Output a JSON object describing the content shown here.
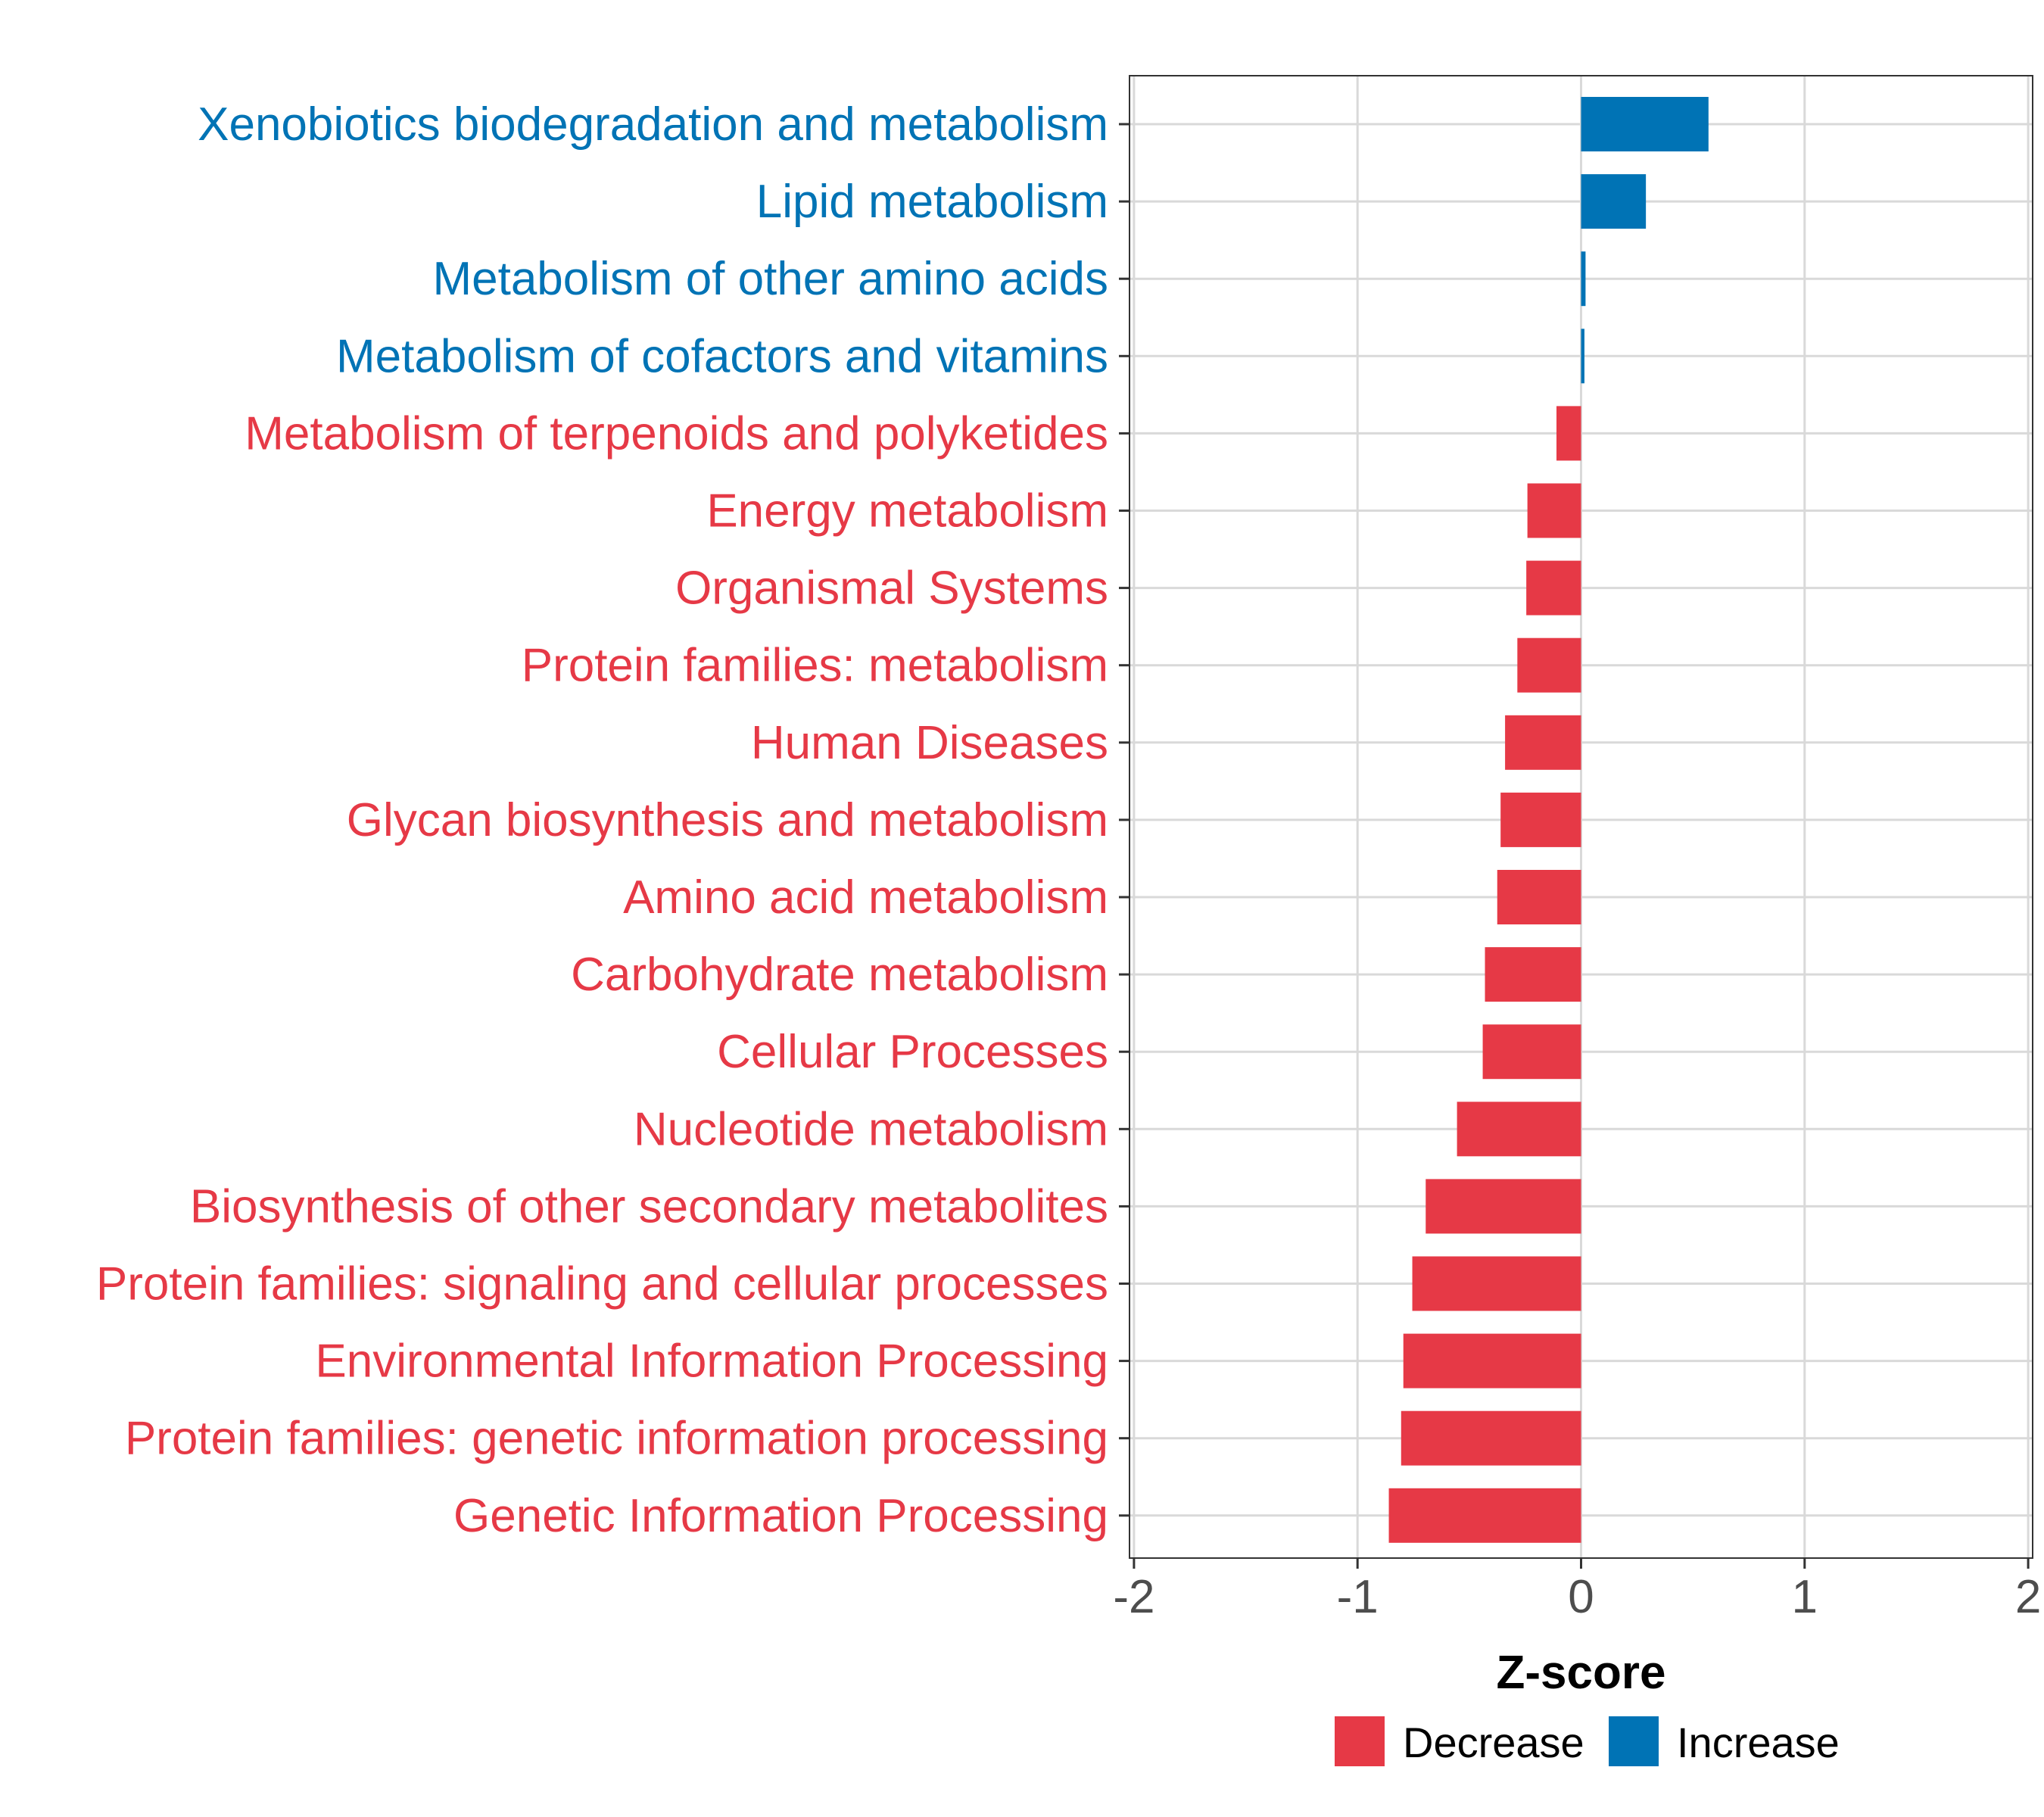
{
  "chart_data": {
    "type": "bar",
    "orientation": "horizontal",
    "title": "",
    "xlabel": "Z-score",
    "ylabel": "",
    "xlim": [
      -2.02,
      2.02
    ],
    "x_ticks": [
      -2,
      -1,
      0,
      1,
      2
    ],
    "x_tick_labels": [
      "-2",
      "-1",
      "0",
      "1",
      "2"
    ],
    "grid": true,
    "legend_position": "bottom",
    "colors": {
      "Decrease": "#E63946",
      "Increase": "#0073B5"
    },
    "categories": [
      "Xenobiotics biodegradation and metabolism",
      "Lipid metabolism",
      "Metabolism of other amino acids",
      "Metabolism of cofactors and vitamins",
      "Metabolism of terpenoids and polyketides",
      "Energy metabolism",
      "Organismal Systems",
      "Protein families: metabolism",
      "Human Diseases",
      "Glycan biosynthesis and metabolism",
      "Amino acid metabolism",
      "Carbohydrate metabolism",
      "Cellular Processes",
      "Nucleotide metabolism",
      "Biosynthesis of other secondary metabolites",
      "Protein families: signaling and cellular processes",
      "Environmental Information Processing",
      "Protein families: genetic information processing",
      "Genetic Information Processing"
    ],
    "values": [
      0.57,
      0.29,
      0.02,
      0.015,
      -0.11,
      -0.24,
      -0.245,
      -0.285,
      -0.34,
      -0.36,
      -0.375,
      -0.43,
      -0.44,
      -0.555,
      -0.695,
      -0.755,
      -0.795,
      -0.805,
      -0.86
    ],
    "groups": [
      "Increase",
      "Increase",
      "Increase",
      "Increase",
      "Decrease",
      "Decrease",
      "Decrease",
      "Decrease",
      "Decrease",
      "Decrease",
      "Decrease",
      "Decrease",
      "Decrease",
      "Decrease",
      "Decrease",
      "Decrease",
      "Decrease",
      "Decrease",
      "Decrease"
    ],
    "legend": [
      {
        "name": "Decrease",
        "color": "#E63946"
      },
      {
        "name": "Increase",
        "color": "#0073B5"
      }
    ]
  }
}
